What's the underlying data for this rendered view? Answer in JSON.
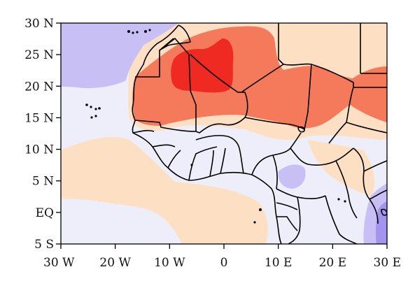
{
  "map": {
    "lat_ticks": [
      {
        "value": 30,
        "label": "30 N"
      },
      {
        "value": 25,
        "label": "25 N"
      },
      {
        "value": 20,
        "label": "20 N"
      },
      {
        "value": 15,
        "label": "15 N"
      },
      {
        "value": 10,
        "label": "10 N"
      },
      {
        "value": 5,
        "label": "5 N"
      },
      {
        "value": 0,
        "label": "EQ"
      },
      {
        "value": -5,
        "label": "5 S"
      }
    ],
    "lon_ticks": [
      {
        "value": -30,
        "label": "30 W"
      },
      {
        "value": -20,
        "label": "20 W"
      },
      {
        "value": -10,
        "label": "10 W"
      },
      {
        "value": 0,
        "label": "0"
      },
      {
        "value": 10,
        "label": "10 E"
      },
      {
        "value": 20,
        "label": "20 E"
      },
      {
        "value": 30,
        "label": "30 E"
      }
    ],
    "extent": {
      "lon_min": -30,
      "lon_max": 30,
      "lat_min": -5,
      "lat_max": 30
    },
    "colors": {
      "strong_warm": "#ee2a22",
      "warm": "#f57a5c",
      "light_warm": "#fde0c4",
      "light_cool": "#eeeefb",
      "cool": "#c8c0f5",
      "strong_cool": "#a494ee",
      "border": "#000000"
    }
  }
}
